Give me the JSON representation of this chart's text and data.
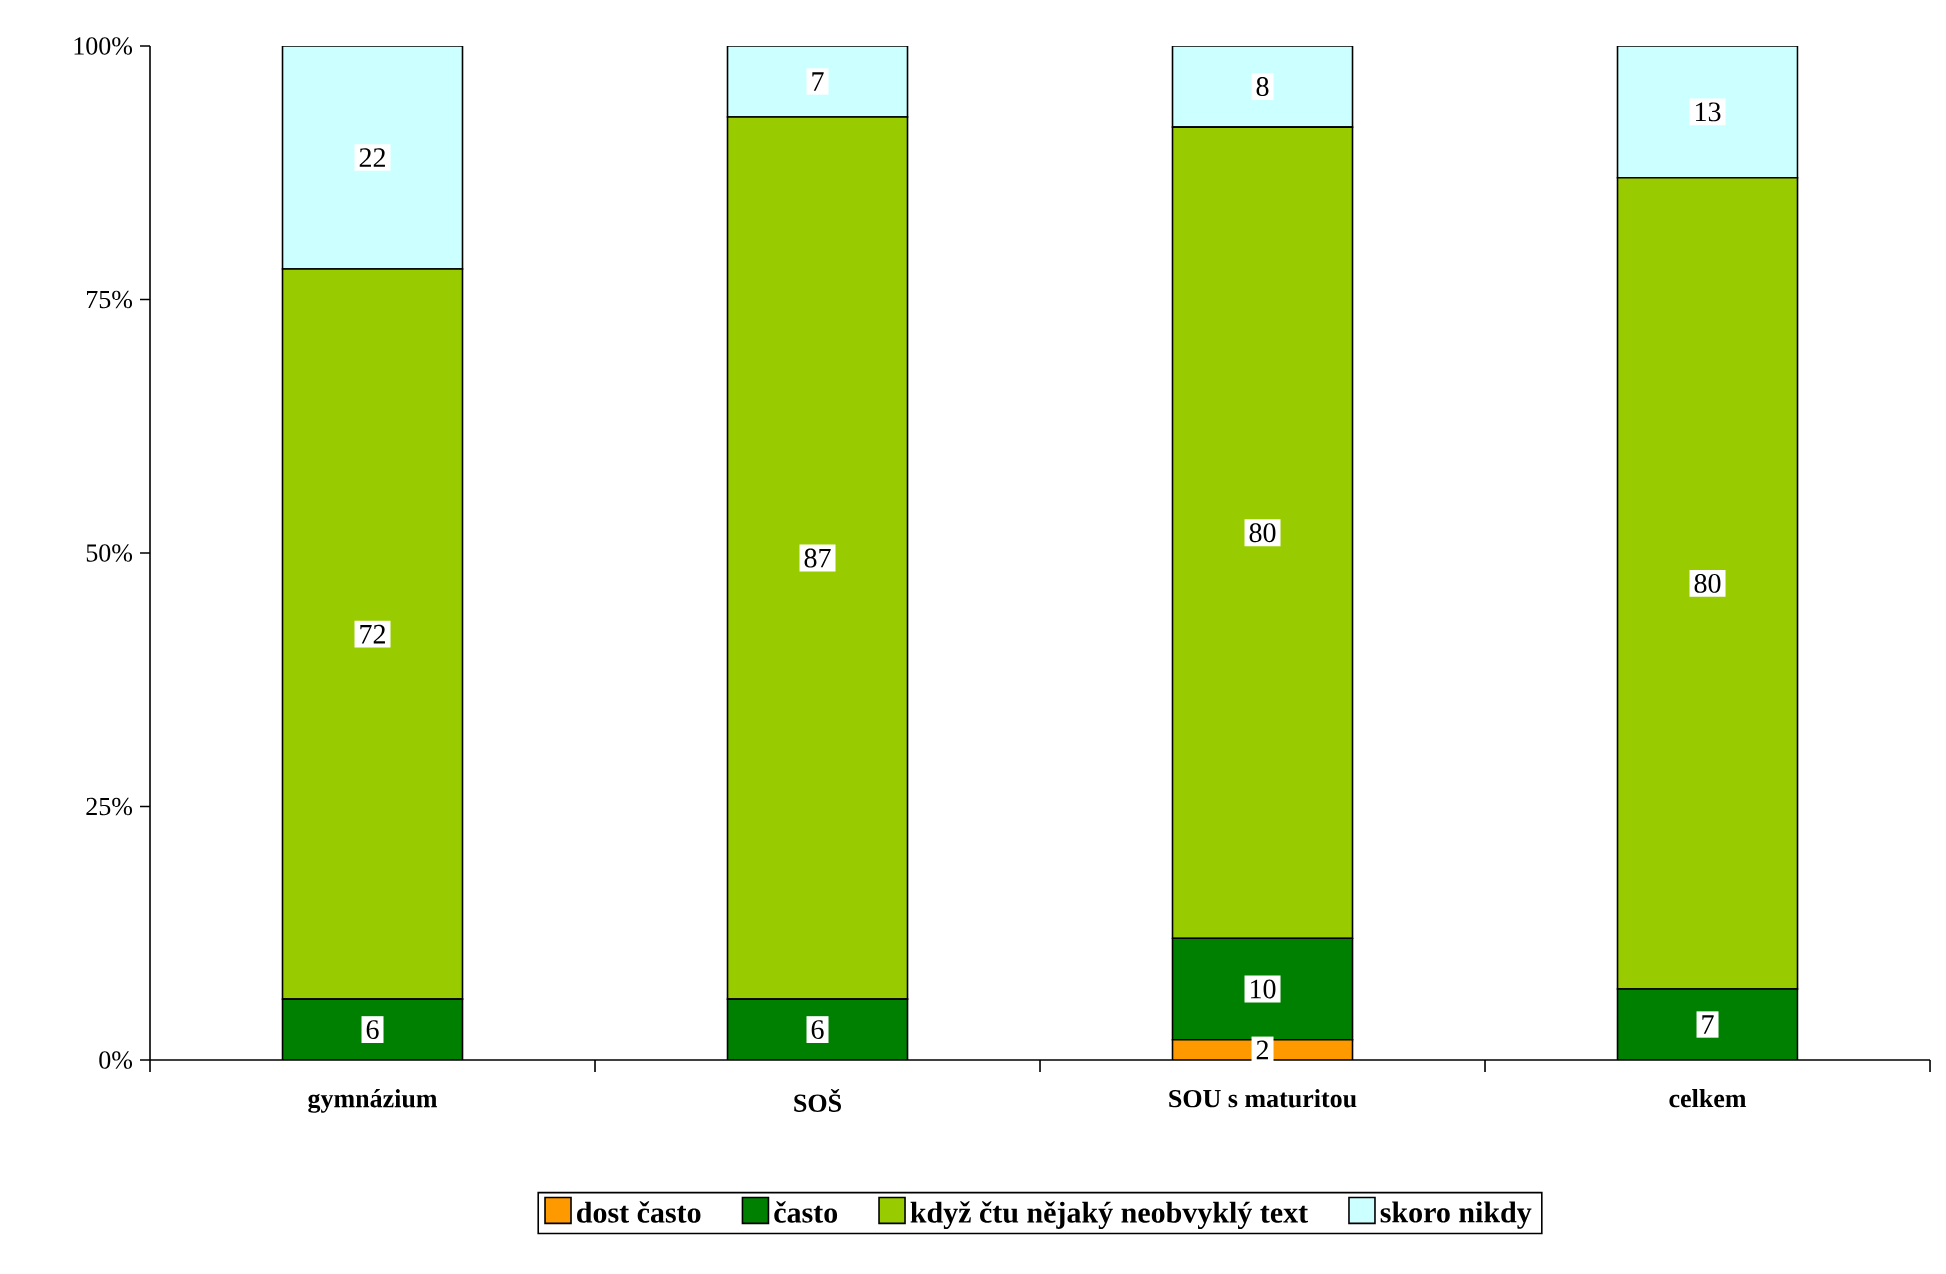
{
  "chart_data": {
    "type": "bar",
    "stacked": true,
    "categories": [
      "gymnázium",
      "SOŠ",
      "SOU s maturitou",
      "celkem"
    ],
    "series": [
      {
        "name": "dost často",
        "color": "#ff9900",
        "values": [
          0,
          0,
          2,
          0
        ],
        "value_labels": [
          null,
          null,
          "2",
          null
        ]
      },
      {
        "name": "často",
        "color": "#008000",
        "values": [
          6,
          6,
          10,
          7
        ],
        "value_labels": [
          "6",
          "6",
          "10",
          "7"
        ]
      },
      {
        "name": "když čtu nějaký neobvyklý text",
        "color": "#99cc00",
        "values": [
          72,
          87,
          80,
          80
        ],
        "value_labels": [
          "72",
          "87",
          "80",
          "80"
        ]
      },
      {
        "name": "skoro nikdy",
        "color": "#ccffff",
        "values": [
          22,
          7,
          8,
          13
        ],
        "value_labels": [
          "22",
          "7",
          "8",
          "13"
        ]
      }
    ],
    "ylim": [
      0,
      100
    ],
    "yticks": [
      {
        "value": 0,
        "label": "0%"
      },
      {
        "value": 25,
        "label": "25%"
      },
      {
        "value": 50,
        "label": "50%"
      },
      {
        "value": 75,
        "label": "75%"
      },
      {
        "value": 100,
        "label": "100%"
      }
    ],
    "legend": "bottom",
    "grid": false
  }
}
